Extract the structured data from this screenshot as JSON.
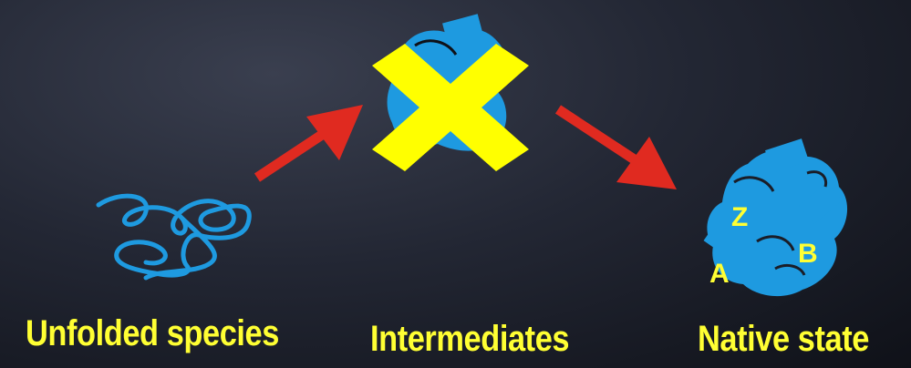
{
  "stages": {
    "unfolded": {
      "label": "Unfolded species"
    },
    "intermediates": {
      "label": "Intermediates"
    },
    "native": {
      "label": "Native state"
    }
  },
  "native_domain_labels": {
    "z": "Z",
    "a": "A",
    "b": "B"
  },
  "colors": {
    "protein": "#1e9ae0",
    "arrow": "#e02a20",
    "cross": "#ffff00",
    "text": "#ffff33"
  },
  "icons": {
    "cross": "cross-out-mark"
  }
}
